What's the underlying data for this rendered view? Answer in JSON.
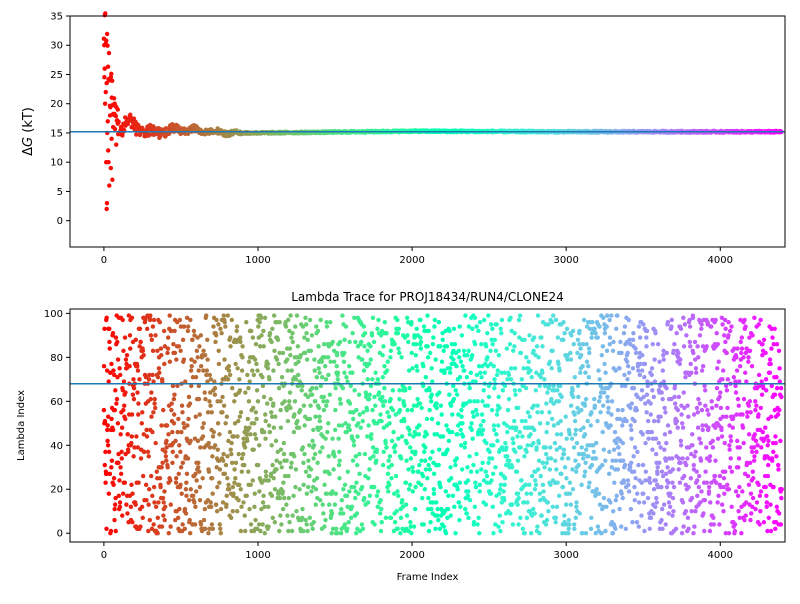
{
  "chart_data": [
    {
      "type": "scatter",
      "title": "",
      "xlabel": "",
      "ylabel_symbol": "Δ",
      "ylabel_var": "G",
      "ylabel_unit": " (kT)",
      "xlim": [
        -220,
        4420
      ],
      "ylim": [
        -4.5,
        35
      ],
      "xticks": [
        0,
        1000,
        2000,
        3000,
        4000
      ],
      "yticks": [
        0,
        5,
        10,
        15,
        20,
        25,
        30,
        35
      ],
      "hline": 15.2,
      "grid": false,
      "x_range": [
        0,
        4399
      ],
      "colormap": "rainbow_r",
      "trend": {
        "description_points": [
          [
            0,
            30
          ],
          [
            30,
            25
          ],
          [
            60,
            20
          ],
          [
            100,
            16
          ],
          [
            150,
            17
          ],
          [
            200,
            16
          ],
          [
            300,
            15
          ],
          [
            450,
            15.5
          ],
          [
            600,
            15.5
          ],
          [
            800,
            15
          ],
          [
            1000,
            15
          ],
          [
            2000,
            15.3
          ],
          [
            3000,
            15.2
          ],
          [
            4399,
            15.2
          ]
        ],
        "early_scatter": [
          [
            2,
            30
          ],
          [
            5,
            26
          ],
          [
            8,
            20
          ],
          [
            12,
            22
          ],
          [
            15,
            10
          ],
          [
            18,
            2
          ],
          [
            20,
            3
          ],
          [
            22,
            15
          ],
          [
            25,
            17
          ],
          [
            28,
            12
          ],
          [
            30,
            10
          ],
          [
            35,
            6
          ],
          [
            40,
            18
          ],
          [
            45,
            9
          ],
          [
            50,
            14
          ],
          [
            55,
            7
          ],
          [
            60,
            16
          ],
          [
            70,
            20
          ],
          [
            80,
            13
          ],
          [
            90,
            19
          ]
        ]
      }
    },
    {
      "type": "scatter",
      "title": "Lambda Trace for PROJ18434/RUN4/CLONE24",
      "xlabel": "Frame Index",
      "ylabel": "Lambda Index",
      "xlim": [
        -220,
        4420
      ],
      "ylim": [
        -4,
        102
      ],
      "xticks": [
        0,
        1000,
        2000,
        3000,
        4000
      ],
      "yticks": [
        0,
        20,
        40,
        60,
        80,
        100
      ],
      "hline": 68,
      "grid": false,
      "x_range": [
        0,
        4399
      ],
      "y_range": [
        0,
        99
      ],
      "colormap": "rainbow_r"
    }
  ]
}
